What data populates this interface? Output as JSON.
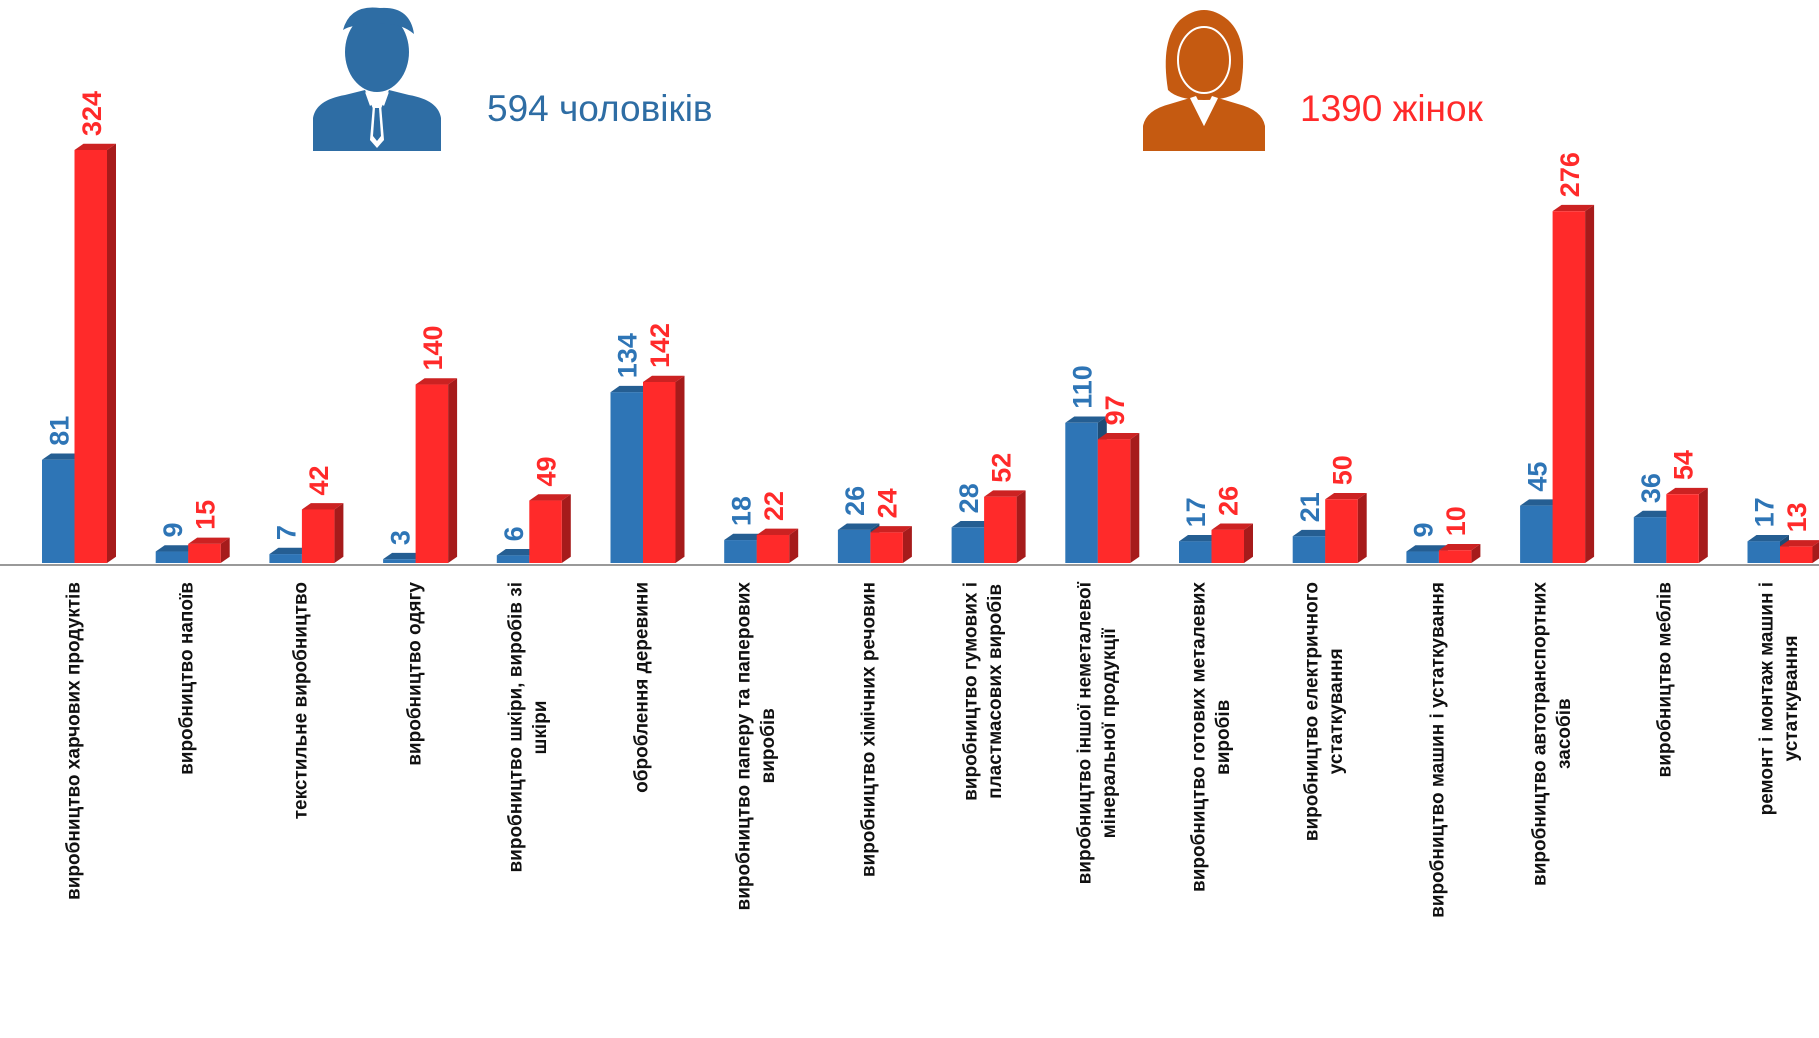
{
  "chart_data": {
    "type": "bar3d",
    "categories": [
      "виробництво харчових продуктів",
      "виробництво напоїв",
      "текстильне  виробництво",
      "виробництво одягу",
      "виробництво шкіри, виробів зі\nшкіри",
      "оброблення деревини",
      "виробництво паперу та паперових\nвиробів",
      "виробництво хімічних речовин",
      "виробництво гумових і\nпластмасових виробів",
      "виробництво іншої неметалевої\nмінеральної продукції",
      "виробництво готових металевих\nвиробів",
      "виробництво електричного\nустаткування",
      "виробництво машин і устаткування",
      "виробництво автотранспортних\nзасобів",
      "виробництво меблів",
      "ремонт і монтаж машин і\nустаткування"
    ],
    "series": [
      {
        "name": "594 чоловіків",
        "color": "#2e75b6",
        "values": [
          81,
          9,
          7,
          3,
          6,
          134,
          18,
          26,
          28,
          110,
          17,
          21,
          9,
          45,
          36,
          17
        ]
      },
      {
        "name": "1390 жінок",
        "color": "#ff2a2a",
        "values": [
          324,
          15,
          42,
          140,
          49,
          142,
          22,
          24,
          52,
          97,
          26,
          50,
          10,
          276,
          54,
          13
        ]
      }
    ]
  }
}
